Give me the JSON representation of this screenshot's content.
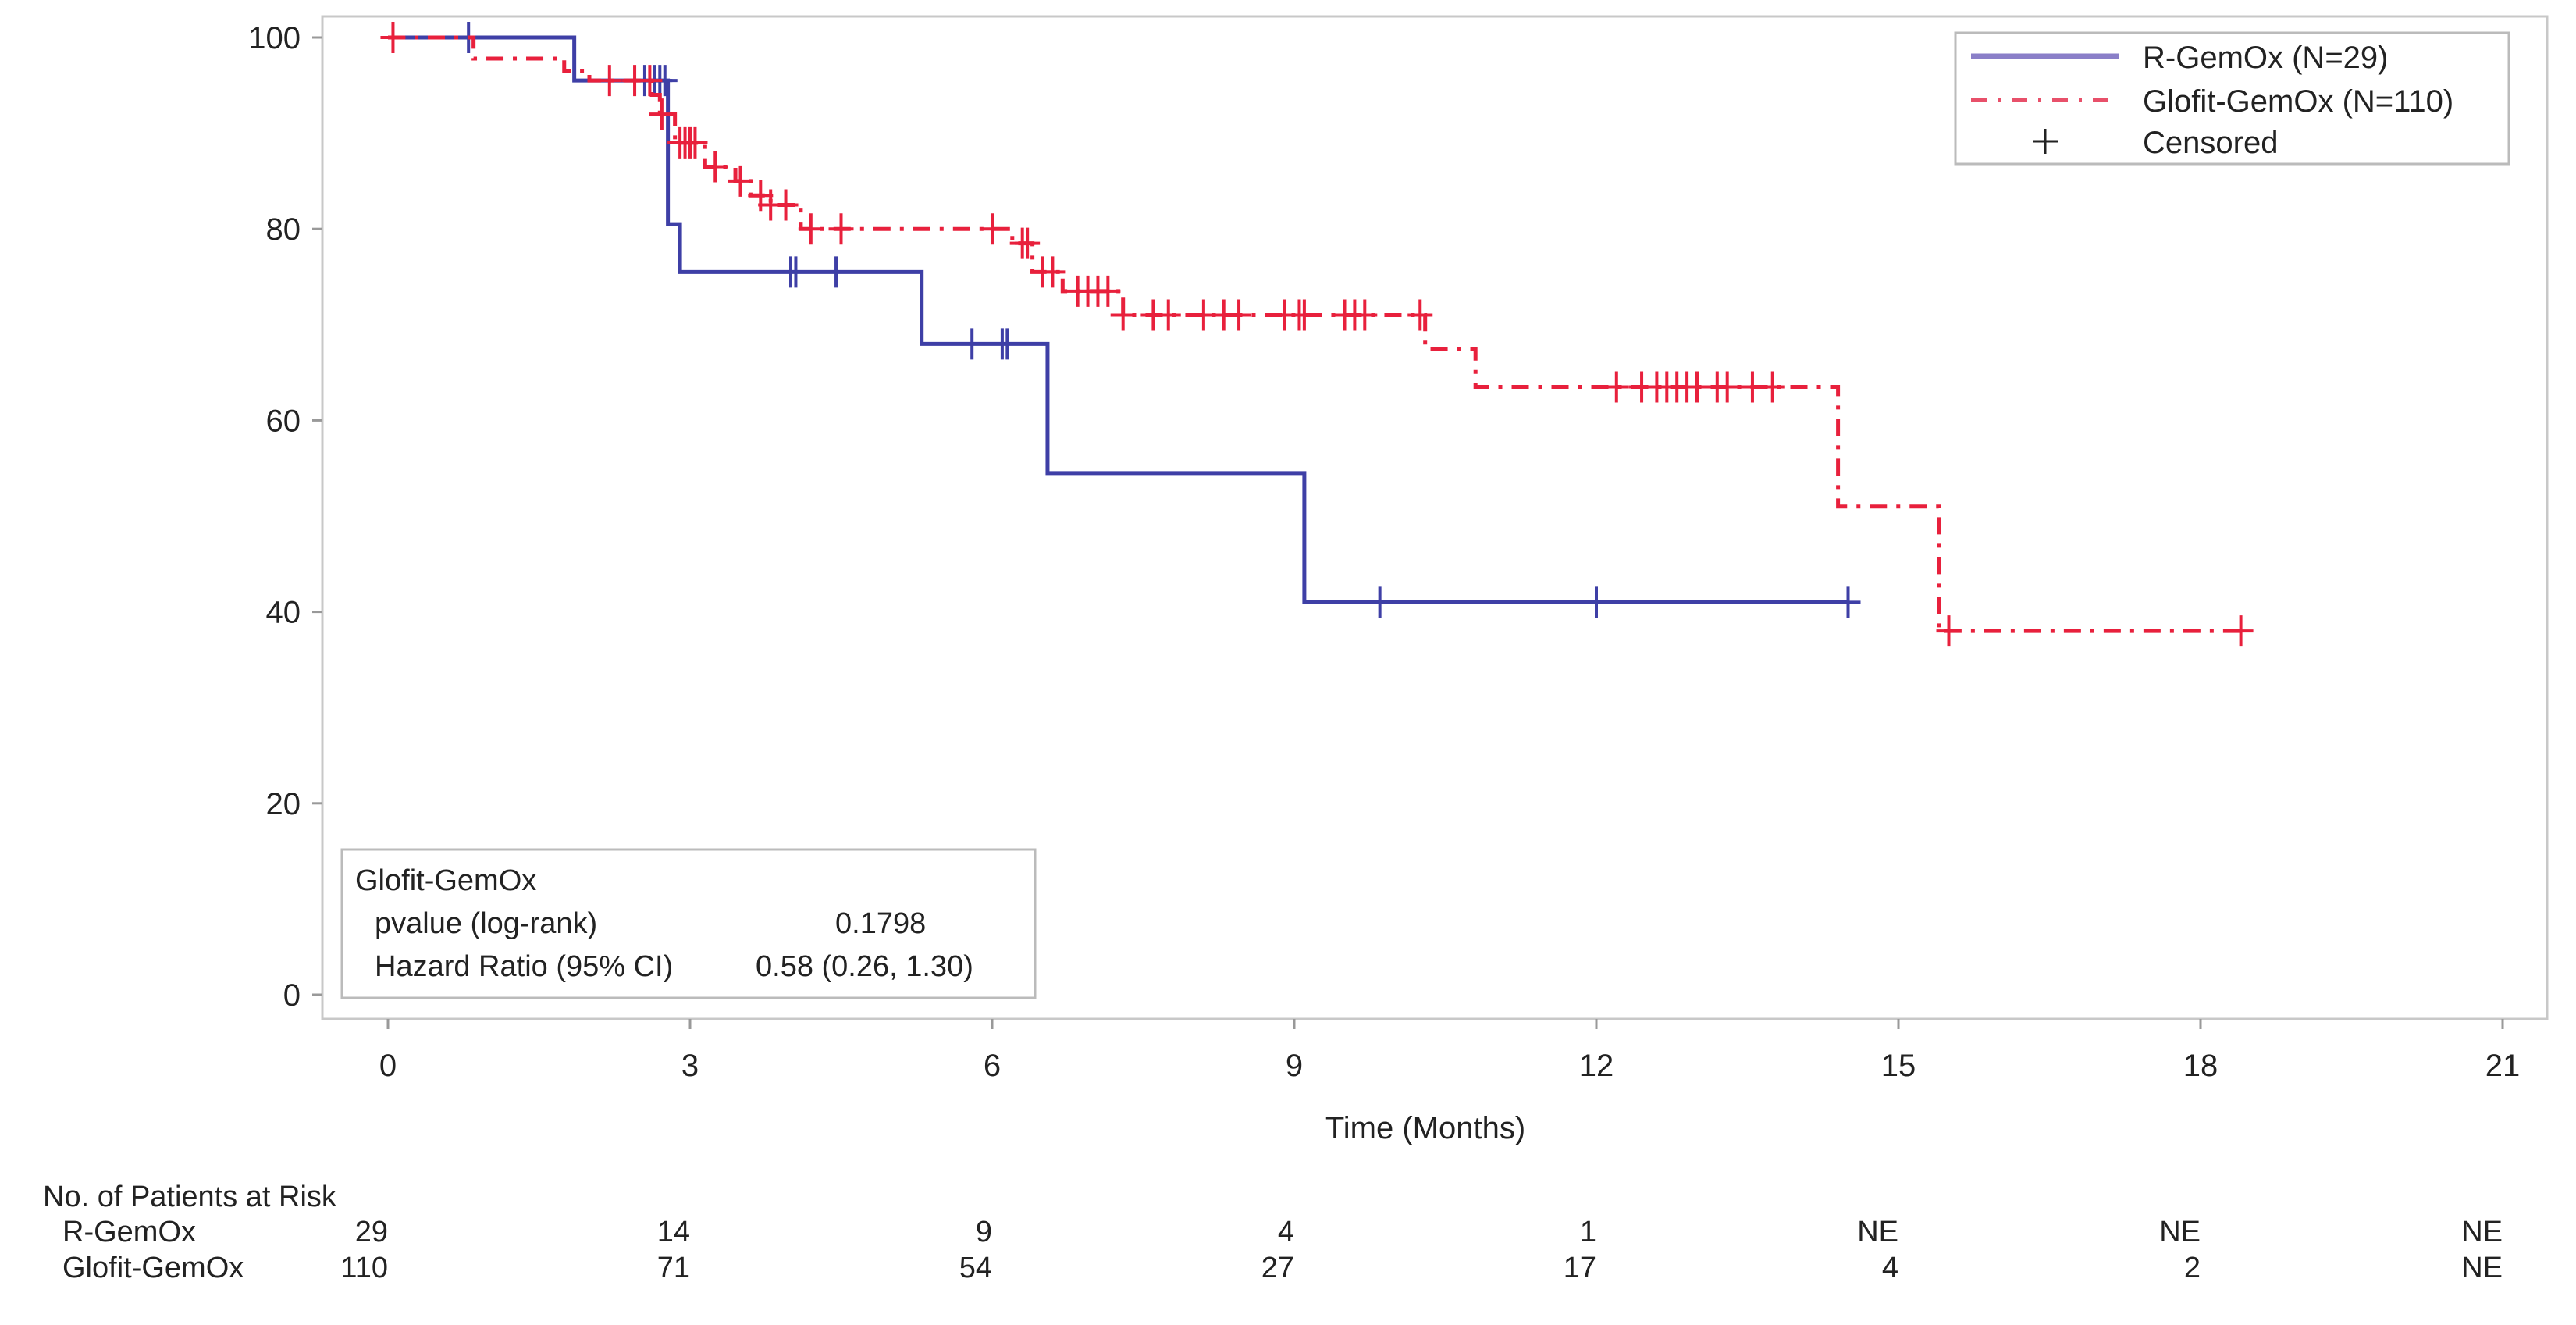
{
  "chart_data": {
    "type": "line",
    "subtype": "kaplan-meier",
    "xlabel": "Time (Months)",
    "ylabel": "",
    "xlim": [
      0,
      21
    ],
    "ylim": [
      0,
      100
    ],
    "xticks": [
      0,
      3,
      6,
      9,
      12,
      15,
      18,
      21
    ],
    "yticks": [
      0,
      20,
      40,
      60,
      80,
      100
    ],
    "grid": false,
    "legend_position": "top-right",
    "legend": [
      {
        "label": "R-GemOx (N=29)",
        "style": "solid",
        "color": "#8a7fc8"
      },
      {
        "label": "Glofit-GemOx (N=110)",
        "style": "dash-dot",
        "color": "#e8506a"
      },
      {
        "label": "Censored",
        "marker": "+"
      }
    ],
    "series": [
      {
        "name": "R-GemOx (N=29)",
        "color": "#3e3fa6",
        "style": "solid",
        "steps": [
          [
            0,
            100
          ],
          [
            1.85,
            95.5
          ],
          [
            2.78,
            80.5
          ],
          [
            2.9,
            75.5
          ],
          [
            5.3,
            68
          ],
          [
            6.55,
            54.5
          ],
          [
            9.1,
            41
          ],
          [
            14.5,
            41
          ]
        ],
        "censored": [
          0.8,
          2.55,
          2.65,
          2.7,
          2.75,
          4.0,
          4.05,
          4.45,
          5.8,
          6.1,
          6.15,
          9.85,
          12.0,
          14.5
        ]
      },
      {
        "name": "Glofit-GemOx (N=110)",
        "color": "#e8203c",
        "style": "dash-dot",
        "steps": [
          [
            0,
            100
          ],
          [
            0.85,
            97.8
          ],
          [
            1.75,
            96.5
          ],
          [
            2.0,
            95.5
          ],
          [
            2.62,
            94
          ],
          [
            2.7,
            92
          ],
          [
            2.85,
            89
          ],
          [
            3.15,
            86.5
          ],
          [
            3.45,
            85
          ],
          [
            3.6,
            83.5
          ],
          [
            3.8,
            82.5
          ],
          [
            4.1,
            80
          ],
          [
            6.2,
            78.5
          ],
          [
            6.4,
            75.5
          ],
          [
            6.7,
            73.5
          ],
          [
            7.3,
            71
          ],
          [
            10.3,
            67.5
          ],
          [
            10.8,
            63.5
          ],
          [
            14.4,
            51
          ],
          [
            15.4,
            38
          ],
          [
            18.4,
            38
          ]
        ],
        "censored": [
          0.05,
          2.2,
          2.45,
          2.6,
          2.72,
          2.9,
          2.95,
          3.0,
          3.05,
          3.25,
          3.5,
          3.7,
          3.8,
          3.95,
          4.2,
          4.5,
          6.0,
          6.3,
          6.35,
          6.5,
          6.6,
          6.85,
          6.95,
          7.05,
          7.15,
          7.3,
          7.6,
          7.75,
          8.1,
          8.3,
          8.45,
          8.9,
          9.05,
          9.1,
          9.5,
          9.6,
          9.7,
          10.25,
          12.2,
          12.45,
          12.6,
          12.7,
          12.8,
          12.9,
          13.0,
          13.2,
          13.3,
          13.55,
          13.75,
          15.5,
          18.4
        ]
      }
    ],
    "stats_box": {
      "title": "Glofit-GemOx",
      "rows": [
        {
          "label": "pvalue (log-rank)",
          "value": "0.1798"
        },
        {
          "label": "Hazard Ratio (95% CI)",
          "value": "0.58 (0.26, 1.30)"
        }
      ]
    },
    "risk_table": {
      "title": "No. of Patients at Risk",
      "rows": [
        {
          "label": "R-GemOx",
          "values": [
            "29",
            "14",
            "9",
            "4",
            "1",
            "NE",
            "NE",
            "NE"
          ]
        },
        {
          "label": "Glofit-GemOx",
          "values": [
            "110",
            "71",
            "54",
            "27",
            "17",
            "4",
            "2",
            "NE"
          ]
        }
      ]
    }
  }
}
